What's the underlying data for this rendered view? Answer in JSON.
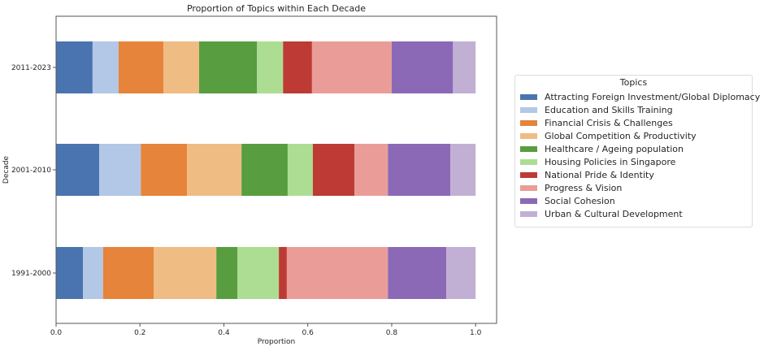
{
  "chart_data": {
    "type": "bar",
    "orientation": "horizontal",
    "stacked": true,
    "title": "Proportion of Topics within Each Decade",
    "xlabel": "Proportion",
    "ylabel": "Decade",
    "xlim": [
      0,
      1.05
    ],
    "xticks": [
      0.0,
      0.2,
      0.4,
      0.6,
      0.8,
      1.0
    ],
    "xtick_labels": [
      "0.0",
      "0.2",
      "0.4",
      "0.6",
      "0.8",
      "1.0"
    ],
    "grid": false,
    "legend_title": "Topics",
    "legend_position": "outside-right",
    "categories": [
      "1991-2000",
      "2001-2010",
      "2011-2023"
    ],
    "series": [
      {
        "name": "Attracting Foreign Investment/Global Diplomacy",
        "color": "#4a74b0",
        "values": [
          0.064,
          0.103,
          0.087
        ]
      },
      {
        "name": "Education and Skills Training",
        "color": "#b3c7e6",
        "values": [
          0.048,
          0.099,
          0.062
        ]
      },
      {
        "name": "Financial Crisis & Challenges",
        "color": "#e5843a",
        "values": [
          0.121,
          0.11,
          0.107
        ]
      },
      {
        "name": "Global Competition & Productivity",
        "color": "#efbc84",
        "values": [
          0.149,
          0.13,
          0.085
        ]
      },
      {
        "name": "Healthcare / Ageing population",
        "color": "#589d40",
        "values": [
          0.05,
          0.11,
          0.138
        ]
      },
      {
        "name": "Housing Policies in Singapore",
        "color": "#acdd93",
        "values": [
          0.099,
          0.06,
          0.062
        ]
      },
      {
        "name": "National Pride & Identity",
        "color": "#bd3b34",
        "values": [
          0.019,
          0.099,
          0.069
        ]
      },
      {
        "name": "Progress & Vision",
        "color": "#ea9d98",
        "values": [
          0.241,
          0.08,
          0.19
        ]
      },
      {
        "name": "Social Cohesion",
        "color": "#8b69b7",
        "values": [
          0.139,
          0.149,
          0.146
        ]
      },
      {
        "name": "Urban & Cultural Development",
        "color": "#c1b0d4",
        "values": [
          0.07,
          0.06,
          0.054
        ]
      }
    ]
  }
}
